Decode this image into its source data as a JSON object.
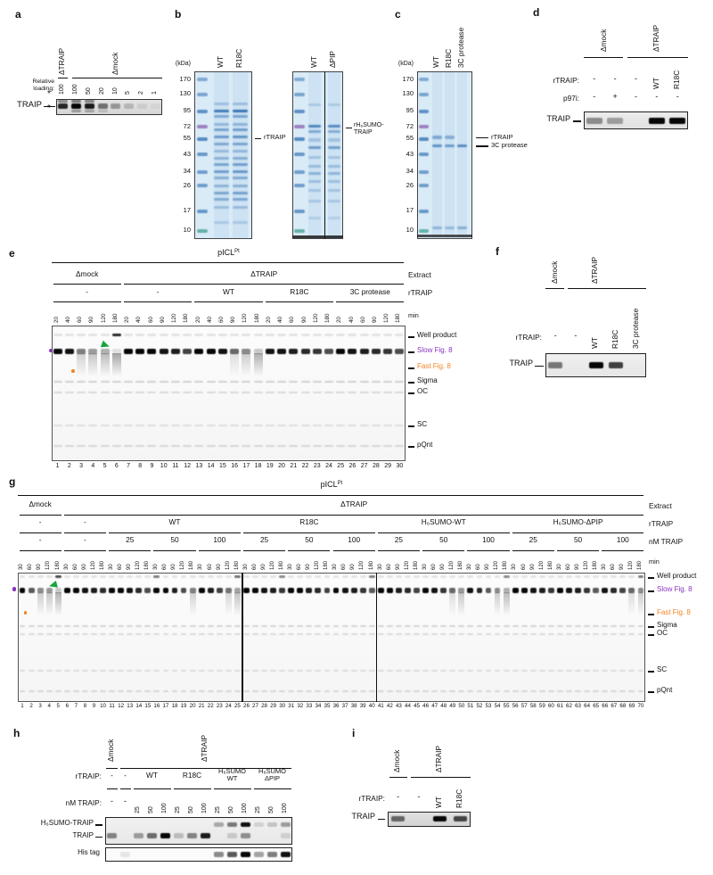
{
  "figure": {
    "colors": {
      "purple": "#8833BF",
      "orange": "#F58220",
      "green": "#16A43A",
      "coomassie_bg": "#D9EBF7",
      "coomassie_band": "#2D6CB0",
      "ladder_purple": "#8A5FAE",
      "ladder_green": "#3FA08E"
    },
    "ladder_pattern": [
      [
        0.048,
        "b",
        0.5
      ],
      [
        0.138,
        "b",
        0.55
      ],
      [
        0.239,
        "b",
        0.7
      ],
      [
        0.33,
        "p",
        0.75
      ],
      [
        0.404,
        "b",
        0.75
      ],
      [
        0.495,
        "b",
        0.65
      ],
      [
        0.601,
        "b",
        0.6
      ],
      [
        0.681,
        "b",
        0.6
      ],
      [
        0.835,
        "b",
        0.65
      ],
      [
        0.952,
        "g",
        0.75
      ]
    ]
  },
  "panels": {
    "a": {
      "letter": "a",
      "group_labels": [
        "ΔTRAIP",
        "Δmock"
      ],
      "loading_label_lines": [
        "Relative",
        "loading:"
      ],
      "loading_values": [
        "100",
        "100",
        "50",
        "20",
        "10",
        "5",
        "2",
        "1"
      ],
      "band_label": "TRAIP",
      "asterisk": "*",
      "band_intensities": [
        0.85,
        1,
        0.9,
        0.5,
        0.32,
        0.18,
        0.08,
        0.04
      ]
    },
    "b": {
      "letter": "b",
      "kda_label": "(kDa)",
      "ladder_values": [
        "170",
        "130",
        "95",
        "72",
        "55",
        "43",
        "34",
        "26",
        "17",
        "10"
      ],
      "gel1_lane_labels": [
        "WT",
        "R18C"
      ],
      "gel2_lane_labels": [
        "WT",
        "ΔPIP"
      ],
      "gel1_marker": "rTRAIP",
      "gel2_marker_lines": [
        "rH₆SUMO-",
        "TRAIP"
      ],
      "gel1_pattern": [
        [
          0.195,
          0.3
        ],
        [
          0.235,
          0.88
        ],
        [
          0.268,
          0.5
        ],
        [
          0.315,
          0.38
        ],
        [
          0.35,
          0.55
        ],
        [
          0.39,
          0.62
        ],
        [
          0.432,
          0.5
        ],
        [
          0.475,
          0.35
        ],
        [
          0.52,
          0.42
        ],
        [
          0.558,
          0.55
        ],
        [
          0.598,
          0.6
        ],
        [
          0.637,
          0.45
        ],
        [
          0.682,
          0.4
        ],
        [
          0.728,
          0.52
        ],
        [
          0.762,
          0.48
        ],
        [
          0.81,
          0.32
        ],
        [
          0.9,
          0.22
        ]
      ],
      "gel2_pattern": [
        [
          0.2,
          0.22
        ],
        [
          0.325,
          0.8
        ],
        [
          0.36,
          0.5
        ],
        [
          0.41,
          0.28
        ],
        [
          0.455,
          0.62
        ],
        [
          0.515,
          0.28
        ],
        [
          0.565,
          0.35
        ],
        [
          0.61,
          0.42
        ],
        [
          0.655,
          0.32
        ],
        [
          0.71,
          0.28
        ],
        [
          0.775,
          0.25
        ],
        [
          0.875,
          0.18
        ]
      ]
    },
    "c": {
      "letter": "c",
      "kda_label": "(kDa)",
      "ladder_values": [
        "170",
        "130",
        "95",
        "72",
        "55",
        "43",
        "34",
        "26",
        "17",
        "10"
      ],
      "lane_labels": [
        "WT",
        "R18C",
        "3C protease"
      ],
      "marker_labels": [
        "rTRAIP",
        "3C protease"
      ],
      "sample_pattern": [
        [
          0.394,
          0.5
        ],
        [
          0.444,
          0.68
        ],
        [
          0.935,
          0.4
        ]
      ],
      "protease_pattern": [
        [
          0.444,
          0.75
        ],
        [
          0.935,
          0.45
        ]
      ]
    },
    "d": {
      "letter": "d",
      "extract_labels": [
        "Δmock",
        "ΔTRAIP"
      ],
      "rtraip_label": "rTRAIP:",
      "p97i_label": "p97i:",
      "rtraip_values": [
        "-",
        "-",
        "-",
        "WT",
        "R18C"
      ],
      "p97i_values": [
        "-",
        "+",
        "-",
        "-",
        "-"
      ],
      "band_label": "TRAIP",
      "band_intensities": [
        0.4,
        0.32,
        0,
        1,
        1
      ]
    },
    "e": {
      "letter": "e",
      "title": "pICL",
      "title_sup": "Pt",
      "extract_groups": [
        {
          "label": "Δmock",
          "s": 1,
          "e": 6
        },
        {
          "label": "ΔTRAIP",
          "s": 7,
          "e": 30
        }
      ],
      "rtraip_groups": [
        {
          "label": "-",
          "s": 1,
          "e": 6
        },
        {
          "label": "-",
          "s": 7,
          "e": 12
        },
        {
          "label": "WT",
          "s": 13,
          "e": 18
        },
        {
          "label": "R18C",
          "s": 19,
          "e": 24
        },
        {
          "label": "3C protease",
          "s": 25,
          "e": 30
        }
      ],
      "time_values": [
        "20",
        "40",
        "60",
        "90",
        "120",
        "180"
      ],
      "right_labels": [
        "Extract",
        "rTRAIP",
        "min"
      ],
      "band_markers": [
        {
          "label": "Well product",
          "color": "#111111"
        },
        {
          "label": "Slow Fig. 8",
          "color": "#8833BF"
        },
        {
          "label": "Fast Fig. 8",
          "color": "#F58220"
        },
        {
          "label": "Sigma",
          "color": "#111111"
        },
        {
          "label": "OC",
          "color": "#111111"
        },
        {
          "label": "SC",
          "color": "#111111"
        },
        {
          "label": "pQnt",
          "color": "#111111"
        }
      ],
      "lane_numbers": [
        "1",
        "2",
        "3",
        "4",
        "5",
        "6",
        "7",
        "8",
        "9",
        "10",
        "11",
        "12",
        "13",
        "14",
        "15",
        "16",
        "17",
        "18",
        "19",
        "20",
        "21",
        "22",
        "23",
        "24",
        "25",
        "26",
        "27",
        "28",
        "29",
        "30"
      ],
      "slow_intensities": [
        1,
        0.95,
        0.5,
        0.38,
        0.3,
        0.1,
        1,
        1,
        1,
        0.95,
        0.9,
        0.75,
        1,
        1,
        0.95,
        0.6,
        0.45,
        0.2,
        0.95,
        0.95,
        0.9,
        0.85,
        0.8,
        0.7,
        1,
        0.95,
        0.9,
        0.85,
        0.8,
        0.7
      ],
      "well_lanes": {
        "6": 0.85
      }
    },
    "f": {
      "letter": "f",
      "extract_labels": [
        "Δmock",
        "ΔTRAIP"
      ],
      "rtraip_label": "rTRAIP:",
      "rtraip_values": [
        "-",
        "-",
        "WT",
        "R18C",
        "3C protease"
      ],
      "band_label": "TRAIP",
      "band_intensities": [
        0.5,
        0,
        1,
        0.75,
        0
      ]
    },
    "g": {
      "letter": "g",
      "title": "pICL",
      "title_sup": "Pt",
      "extract_groups": [
        {
          "label": "Δmock",
          "s": 1,
          "e": 5
        },
        {
          "label": "ΔTRAIP",
          "s": 6,
          "e": 70
        }
      ],
      "rtraip_groups": [
        {
          "label": "-",
          "s": 1,
          "e": 5
        },
        {
          "label": "-",
          "s": 6,
          "e": 10
        },
        {
          "label": "WT",
          "s": 11,
          "e": 25
        },
        {
          "label": "R18C",
          "s": 26,
          "e": 40
        },
        {
          "label": "H₆SUMO-WT",
          "s": 41,
          "e": 55
        },
        {
          "label": "H₆SUMO-ΔPIP",
          "s": 56,
          "e": 70
        }
      ],
      "nm_groups": [
        {
          "label": "-",
          "s": 1,
          "e": 5
        },
        {
          "label": "-",
          "s": 6,
          "e": 10
        },
        {
          "label": "25",
          "s": 11,
          "e": 15
        },
        {
          "label": "50",
          "s": 16,
          "e": 20
        },
        {
          "label": "100",
          "s": 21,
          "e": 25
        },
        {
          "label": "25",
          "s": 26,
          "e": 30
        },
        {
          "label": "50",
          "s": 31,
          "e": 35
        },
        {
          "label": "100",
          "s": 36,
          "e": 40
        },
        {
          "label": "25",
          "s": 41,
          "e": 45
        },
        {
          "label": "50",
          "s": 46,
          "e": 50
        },
        {
          "label": "100",
          "s": 51,
          "e": 55
        },
        {
          "label": "25",
          "s": 56,
          "e": 60
        },
        {
          "label": "50",
          "s": 61,
          "e": 65
        },
        {
          "label": "100",
          "s": 66,
          "e": 70
        }
      ],
      "time_values": [
        "30",
        "60",
        "90",
        "120",
        "180"
      ],
      "right_labels": [
        "Extract",
        "rTRAIP",
        "nM TRAIP",
        "min"
      ],
      "band_markers": [
        {
          "label": "Well product",
          "color": "#111111"
        },
        {
          "label": "Slow Fig. 8",
          "color": "#8833BF"
        },
        {
          "label": "Fast Fig. 8",
          "color": "#F58220"
        },
        {
          "label": "Sigma",
          "color": "#111111"
        },
        {
          "label": "OC",
          "color": "#111111"
        },
        {
          "label": "SC",
          "color": "#111111"
        },
        {
          "label": "pQnt",
          "color": "#111111"
        }
      ],
      "lane_numbers": [
        "1",
        "2",
        "3",
        "4",
        "5",
        "6",
        "7",
        "8",
        "9",
        "10",
        "11",
        "12",
        "13",
        "14",
        "15",
        "16",
        "17",
        "18",
        "19",
        "20",
        "21",
        "22",
        "23",
        "24",
        "25",
        "26",
        "27",
        "28",
        "29",
        "30",
        "31",
        "32",
        "33",
        "34",
        "35",
        "36",
        "37",
        "38",
        "39",
        "40",
        "41",
        "42",
        "43",
        "44",
        "45",
        "46",
        "47",
        "48",
        "49",
        "50",
        "51",
        "52",
        "53",
        "54",
        "55",
        "56",
        "57",
        "58",
        "59",
        "60",
        "61",
        "62",
        "63",
        "64",
        "65",
        "66",
        "67",
        "68",
        "69",
        "70"
      ],
      "slow_intensities": [
        1,
        0.65,
        0.45,
        0.4,
        0.2,
        1,
        1,
        0.95,
        0.9,
        0.85,
        1,
        1,
        0.95,
        0.85,
        0.7,
        1,
        1,
        0.9,
        0.7,
        0.5,
        1,
        0.9,
        0.75,
        0.55,
        0.35,
        1,
        1,
        0.95,
        0.9,
        0.8,
        1,
        1,
        0.9,
        0.85,
        0.75,
        1,
        0.95,
        0.9,
        0.8,
        0.65,
        1,
        1,
        0.9,
        0.85,
        0.75,
        1,
        0.95,
        0.8,
        0.6,
        0.4,
        0.95,
        0.85,
        0.65,
        0.45,
        0.3,
        1,
        1,
        0.95,
        0.9,
        0.8,
        1,
        0.95,
        0.9,
        0.8,
        0.65,
        0.95,
        0.85,
        0.75,
        0.6,
        0.45
      ],
      "well_lanes": {
        "5": 0.7,
        "16": 0.5,
        "25": 0.55,
        "30": 0.45,
        "40": 0.5,
        "55": 0.45,
        "70": 0.5
      }
    },
    "h": {
      "letter": "h",
      "extract_groups": [
        {
          "label": "Δmock",
          "s": 1,
          "e": 1
        },
        {
          "label": "ΔTRAIP",
          "s": 2,
          "e": 14
        }
      ],
      "rtraip_label": "rTRAIP:",
      "rtraip_groups": [
        {
          "label": "-",
          "s": 1,
          "e": 1
        },
        {
          "label": "-",
          "s": 2,
          "e": 2
        },
        {
          "label": "WT",
          "s": 3,
          "e": 5
        },
        {
          "label": "R18C",
          "s": 6,
          "e": 8
        },
        {
          "lines": [
            "H₆SUMO",
            "WT"
          ],
          "s": 9,
          "e": 11
        },
        {
          "lines": [
            "H₆SUMO",
            "ΔPIP"
          ],
          "s": 12,
          "e": 14
        }
      ],
      "nm_label": "nM TRAIP:",
      "nm_values": [
        "-",
        "-",
        "25",
        "50",
        "100",
        "25",
        "50",
        "100",
        "25",
        "50",
        "100",
        "25",
        "50",
        "100"
      ],
      "band_labels": [
        "H₆SUMO-TRAIP",
        "TRAIP"
      ],
      "his_label": "His tag",
      "sumo_band_intensities": [
        0,
        0,
        0,
        0,
        0,
        0,
        0,
        0,
        0.3,
        0.5,
        0.95,
        0.12,
        0.18,
        0.35
      ],
      "traip_band_intensities": [
        0.45,
        0,
        0.35,
        0.55,
        1,
        0.2,
        0.45,
        0.9,
        0,
        0.15,
        0.4,
        0,
        0,
        0.12
      ],
      "his_band_intensities": [
        0,
        0.08,
        0,
        0,
        0,
        0,
        0,
        0,
        0.45,
        0.65,
        1,
        0.35,
        0.5,
        0.95
      ]
    },
    "i": {
      "letter": "i",
      "extract_labels": [
        "Δmock",
        "ΔTRAIP"
      ],
      "rtraip_label": "rTRAIP:",
      "rtraip_values": [
        "-",
        "-",
        "WT",
        "R18C"
      ],
      "band_label": "TRAIP",
      "band_intensities": [
        0.55,
        0,
        1,
        0.7
      ]
    }
  }
}
